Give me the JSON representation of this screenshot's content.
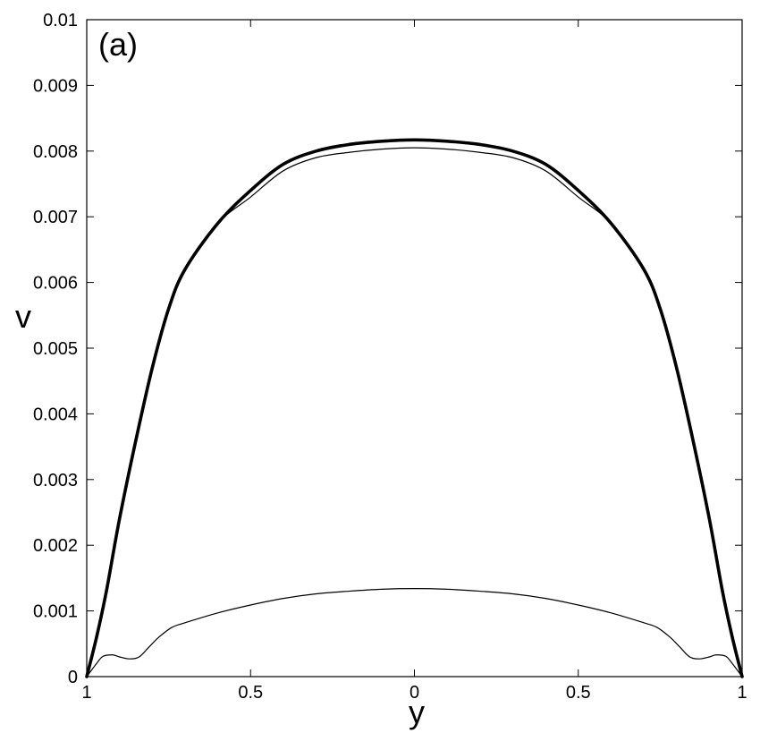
{
  "chart_data": {
    "type": "line",
    "panel_label": "(a)",
    "xlabel": "y",
    "ylabel": "v",
    "xlim": [
      -1,
      1
    ],
    "ylim": [
      0,
      0.01
    ],
    "grid": false,
    "x_ticks": [
      {
        "value": -1,
        "label": "1"
      },
      {
        "value": -0.5,
        "label": "0.5"
      },
      {
        "value": 0,
        "label": "0"
      },
      {
        "value": 0.5,
        "label": "0.5"
      },
      {
        "value": 1,
        "label": "1"
      }
    ],
    "y_ticks": [
      {
        "value": 0,
        "label": "0"
      },
      {
        "value": 0.001,
        "label": "0.001"
      },
      {
        "value": 0.002,
        "label": "0.002"
      },
      {
        "value": 0.003,
        "label": "0.003"
      },
      {
        "value": 0.004,
        "label": "0.004"
      },
      {
        "value": 0.005,
        "label": "0.005"
      },
      {
        "value": 0.006,
        "label": "0.006"
      },
      {
        "value": 0.007,
        "label": "0.007"
      },
      {
        "value": 0.008,
        "label": "0.008"
      },
      {
        "value": 0.009,
        "label": "0.009"
      },
      {
        "value": 0.01,
        "label": "0.01"
      }
    ],
    "series": [
      {
        "color": "#000000",
        "line_weight": "thick",
        "x": [
          -1,
          -0.97,
          -0.94,
          -0.9,
          -0.85,
          -0.8,
          -0.75,
          -0.7,
          -0.6,
          -0.5,
          -0.4,
          -0.3,
          -0.2,
          -0.1,
          0,
          0.1,
          0.2,
          0.3,
          0.4,
          0.5,
          0.6,
          0.7,
          0.75,
          0.8,
          0.85,
          0.9,
          0.94,
          0.97,
          1
        ],
        "y": [
          0,
          0.0006,
          0.0013,
          0.0024,
          0.0036,
          0.0047,
          0.0056,
          0.0062,
          0.0069,
          0.0074,
          0.0078,
          0.008,
          0.0081,
          0.00815,
          0.00817,
          0.00815,
          0.0081,
          0.008,
          0.0078,
          0.0074,
          0.0069,
          0.0062,
          0.0056,
          0.0047,
          0.0036,
          0.0024,
          0.0013,
          0.0006,
          0
        ]
      },
      {
        "color": "#000000",
        "line_weight": "thin",
        "x": [
          -1,
          -0.97,
          -0.94,
          -0.9,
          -0.85,
          -0.8,
          -0.75,
          -0.7,
          -0.6,
          -0.5,
          -0.4,
          -0.3,
          -0.2,
          -0.1,
          0,
          0.1,
          0.2,
          0.3,
          0.4,
          0.5,
          0.6,
          0.7,
          0.75,
          0.8,
          0.85,
          0.9,
          0.94,
          0.97,
          1
        ],
        "y": [
          0,
          0.0006,
          0.0013,
          0.0024,
          0.0036,
          0.0047,
          0.0056,
          0.0062,
          0.0069,
          0.0073,
          0.0077,
          0.0079,
          0.00798,
          0.00803,
          0.00805,
          0.00803,
          0.00798,
          0.0079,
          0.0077,
          0.0073,
          0.0069,
          0.0062,
          0.0056,
          0.0047,
          0.0036,
          0.0024,
          0.0013,
          0.0006,
          0
        ]
      },
      {
        "color": "#000000",
        "line_weight": "thin",
        "x": [
          -1,
          -0.97,
          -0.95,
          -0.92,
          -0.9,
          -0.87,
          -0.84,
          -0.81,
          -0.78,
          -0.74,
          -0.7,
          -0.6,
          -0.5,
          -0.4,
          -0.3,
          -0.2,
          -0.1,
          0,
          0.1,
          0.2,
          0.3,
          0.4,
          0.5,
          0.6,
          0.7,
          0.74,
          0.78,
          0.81,
          0.84,
          0.87,
          0.9,
          0.92,
          0.95,
          0.97,
          1
        ],
        "y": [
          0,
          0.0002,
          0.00031,
          0.00033,
          0.0003,
          0.00027,
          0.0003,
          0.00045,
          0.0006,
          0.00075,
          0.00082,
          0.00097,
          0.00109,
          0.00119,
          0.00126,
          0.0013,
          0.00133,
          0.00134,
          0.00133,
          0.0013,
          0.00126,
          0.00119,
          0.00109,
          0.00097,
          0.00082,
          0.00075,
          0.0006,
          0.00045,
          0.0003,
          0.00027,
          0.0003,
          0.00033,
          0.00031,
          0.0002,
          0
        ]
      }
    ]
  }
}
